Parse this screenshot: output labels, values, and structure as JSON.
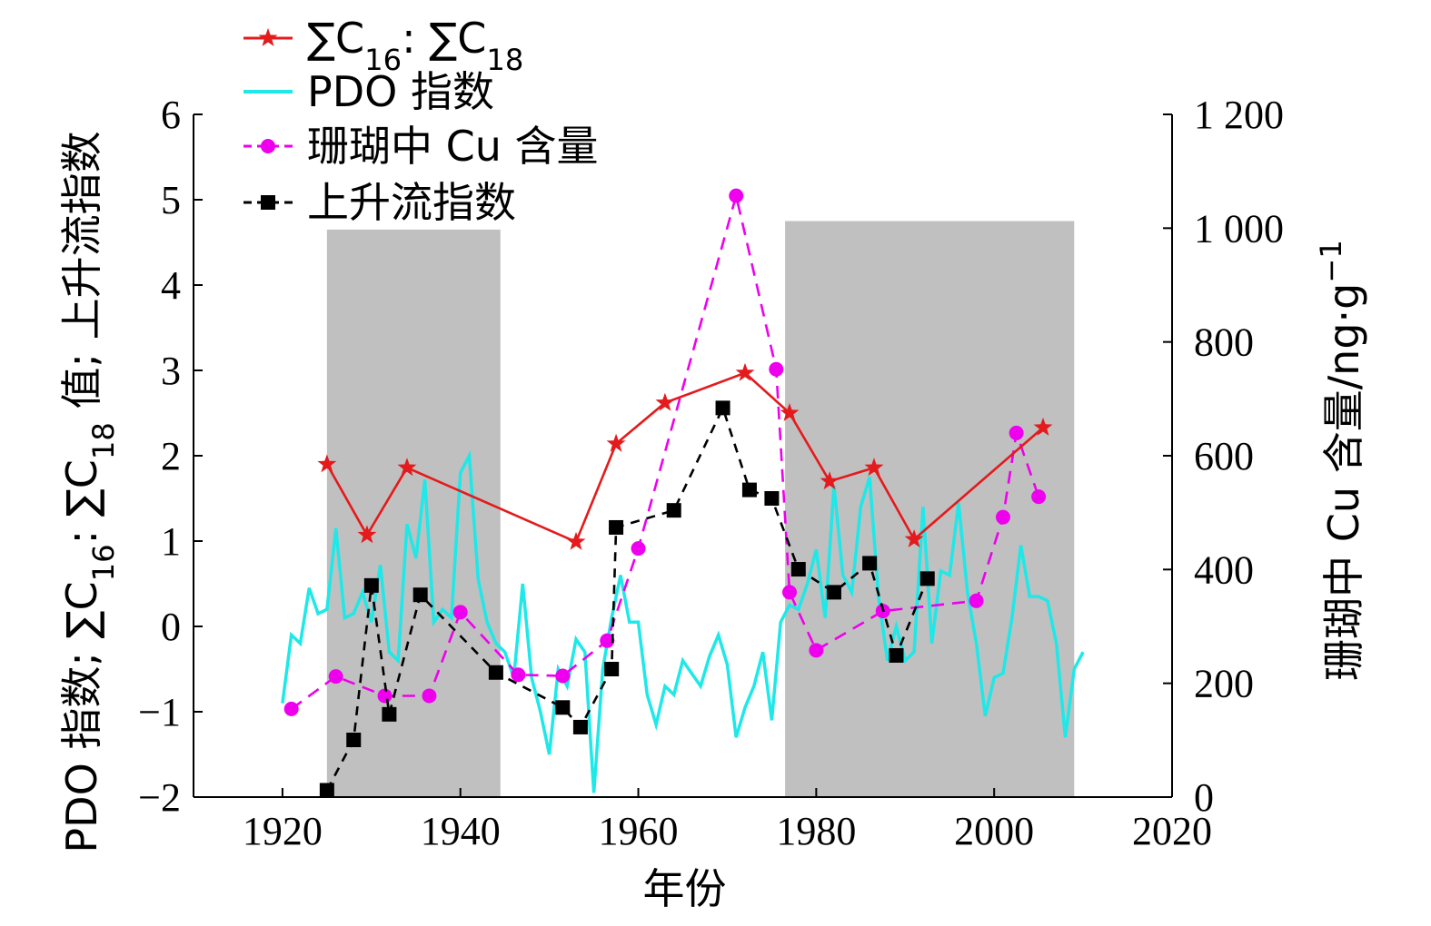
{
  "chart_data": {
    "type": "line",
    "xlabel": "年份",
    "ylabel_left": "PDO 指数; ∑C16: ∑C18 值; 上升流指数",
    "ylabel_left_parts": [
      "PDO 指数; ∑C",
      "16",
      ": ∑C",
      "18",
      " 值; 上升流指数"
    ],
    "ylabel_right": "珊瑚中 Cu 含量/ng·g−1",
    "ylabel_right_parts": [
      "珊瑚中 Cu 含量/ng·g",
      "−1"
    ],
    "xlim": [
      1910,
      2020
    ],
    "xticks": [
      1920,
      1940,
      1960,
      1980,
      2000,
      2020
    ],
    "ylim_left": [
      -2,
      6
    ],
    "yticks_left": [
      -2,
      -1,
      0,
      1,
      2,
      3,
      4,
      5,
      6
    ],
    "yticks_left_labels": [
      "−2",
      "−1",
      "0",
      "1",
      "2",
      "3",
      "4",
      "5",
      "6"
    ],
    "ylim_right": [
      0,
      1200
    ],
    "yticks_right": [
      0,
      200,
      400,
      600,
      800,
      1000,
      1200
    ],
    "yticks_right_labels": [
      "0",
      "200",
      "400",
      "600",
      "800",
      "1 000",
      "1 200"
    ],
    "grid": false,
    "legend_position": "top-left",
    "shaded_periods": [
      [
        1925,
        1944.5
      ],
      [
        1976.5,
        2009
      ]
    ],
    "shade_top_left": [
      4.65,
      4.75
    ],
    "series": [
      {
        "name": "∑C16: ∑C18",
        "legend_parts": [
          "∑C",
          "16",
          ": ∑C",
          "18"
        ],
        "axis": "left",
        "color": "#e41a1c",
        "marker": "star",
        "dash": "",
        "x": [
          1925,
          1929.5,
          1934,
          1953,
          1957.5,
          1963,
          1972,
          1977,
          1981.5,
          1986.5,
          1991,
          2005.5
        ],
        "y": [
          1.9,
          1.07,
          1.86,
          0.99,
          2.14,
          2.62,
          2.97,
          2.5,
          1.7,
          1.86,
          1.02,
          2.33
        ]
      },
      {
        "name": "PDO 指数",
        "legend_parts": [
          "PDO 指数"
        ],
        "axis": "left",
        "color": "#1ee8e8",
        "marker": "none",
        "dash": "",
        "x": [
          1920,
          1921,
          1922,
          1923,
          1924,
          1925,
          1926,
          1927,
          1928,
          1929,
          1930,
          1931,
          1932,
          1933,
          1934,
          1935,
          1936,
          1937,
          1938,
          1939,
          1940,
          1941,
          1942,
          1943,
          1944,
          1945,
          1946,
          1947,
          1948,
          1949,
          1950,
          1951,
          1952,
          1953,
          1954,
          1955,
          1956,
          1957,
          1958,
          1959,
          1960,
          1961,
          1962,
          1963,
          1964,
          1965,
          1966,
          1967,
          1968,
          1969,
          1970,
          1971,
          1972,
          1973,
          1974,
          1975,
          1976,
          1977,
          1978,
          1979,
          1980,
          1981,
          1982,
          1983,
          1984,
          1985,
          1986,
          1987,
          1988,
          1989,
          1990,
          1991,
          1992,
          1993,
          1994,
          1995,
          1996,
          1997,
          1998,
          1999,
          2000,
          2001,
          2002,
          2003,
          2004,
          2005,
          2006,
          2007,
          2008,
          2009,
          2010
        ],
        "y": [
          -0.9,
          -0.1,
          -0.2,
          0.45,
          0.15,
          0.2,
          1.15,
          0.1,
          0.15,
          0.4,
          0.05,
          0.72,
          -0.3,
          -0.4,
          1.2,
          0.8,
          1.72,
          0.05,
          0.2,
          0.1,
          1.8,
          2.0,
          0.55,
          0.05,
          -0.2,
          -0.3,
          -0.6,
          0.5,
          -0.6,
          -1.0,
          -1.5,
          -0.5,
          -0.7,
          -0.15,
          -0.3,
          -1.95,
          -0.5,
          0.1,
          0.6,
          0.05,
          0.05,
          -0.8,
          -1.15,
          -0.7,
          -0.8,
          -0.4,
          -0.55,
          -0.7,
          -0.35,
          -0.1,
          -0.45,
          -1.3,
          -0.95,
          -0.7,
          -0.3,
          -1.1,
          0.05,
          0.25,
          0.2,
          0.5,
          0.9,
          0.1,
          1.65,
          0.6,
          0.4,
          1.4,
          1.75,
          0.35,
          -0.4,
          0.0,
          -0.4,
          -0.3,
          1.4,
          -0.2,
          0.65,
          0.6,
          1.45,
          0.4,
          -0.2,
          -1.05,
          -0.6,
          -0.55,
          0.1,
          0.95,
          0.35,
          0.35,
          0.3,
          -0.2,
          -1.3,
          -0.5,
          -0.3
        ]
      },
      {
        "name": "珊瑚中 Cu 含量",
        "legend_parts": [
          "珊瑚中 Cu 含量"
        ],
        "axis": "right",
        "color": "#ee00ee",
        "marker": "circle",
        "dash": "14,9",
        "x": [
          1921,
          1926,
          1931.5,
          1936.5,
          1940,
          1946.5,
          1951.5,
          1956.5,
          1960,
          1971,
          1975.5,
          1977,
          1980,
          1987.5,
          1998,
          2001,
          2002.5,
          2005
        ],
        "y": [
          155,
          212,
          178,
          178,
          325,
          215,
          213,
          275,
          437,
          1057,
          752,
          360,
          258,
          327,
          345,
          492,
          640,
          528
        ]
      },
      {
        "name": "上升流指数",
        "legend_parts": [
          "上升流指数"
        ],
        "axis": "left",
        "color": "#000000",
        "marker": "square",
        "dash": "10,8",
        "x": [
          1925,
          1928,
          1930,
          1932,
          1935.5,
          1944,
          1951.5,
          1953.5,
          1957,
          1957.5,
          1964,
          1969.5,
          1972.5,
          1975,
          1978,
          1982,
          1986,
          1989,
          1992.5
        ],
        "y": [
          -1.92,
          -1.33,
          0.48,
          -1.03,
          0.37,
          -0.54,
          -0.95,
          -1.18,
          -0.5,
          1.16,
          1.36,
          2.56,
          1.6,
          1.5,
          0.67,
          0.4,
          0.74,
          -0.34,
          0.56
        ]
      }
    ]
  }
}
